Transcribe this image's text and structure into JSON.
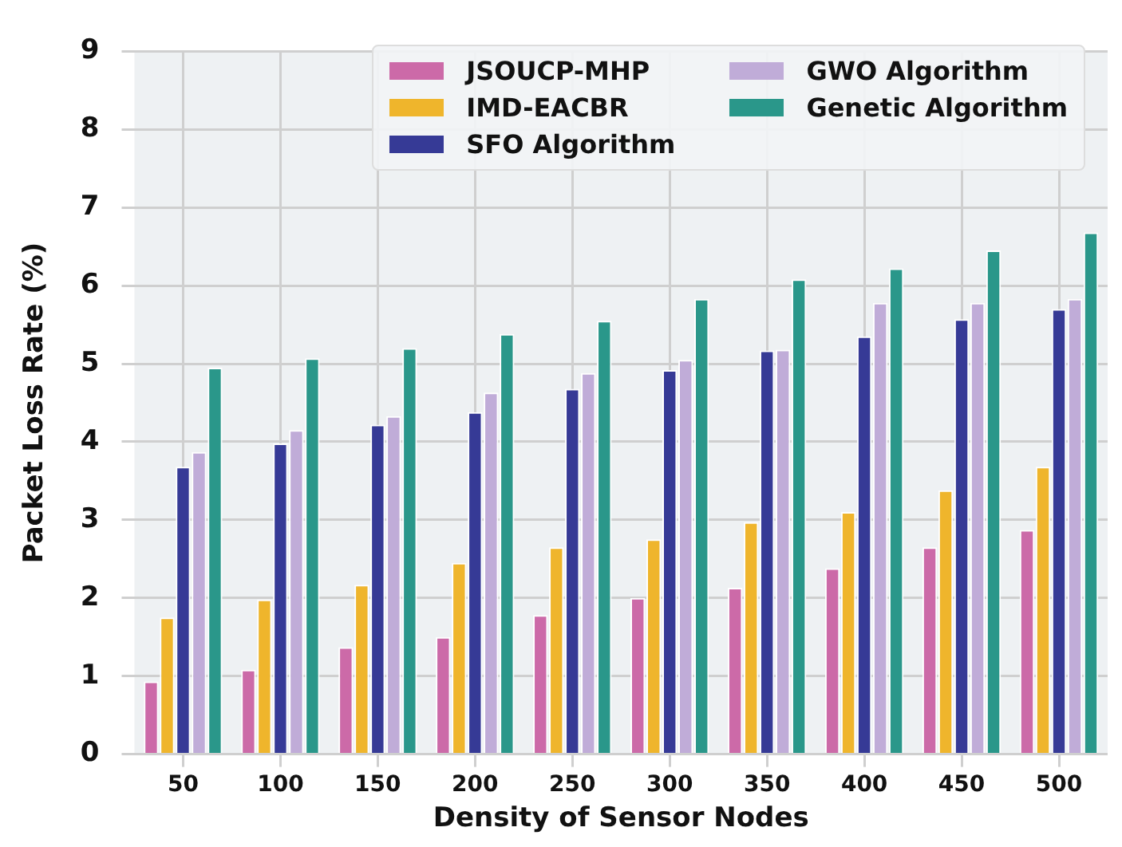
{
  "chart_data": {
    "type": "bar",
    "xlabel": "Density of Sensor Nodes",
    "ylabel": "Packet Loss Rate (%)",
    "categories": [
      "50",
      "100",
      "150",
      "200",
      "250",
      "300",
      "350",
      "400",
      "450",
      "500"
    ],
    "series": [
      {
        "name": "JSOUCP-MHP",
        "color": "#cc6aa8",
        "values": [
          0.93,
          1.08,
          1.37,
          1.5,
          1.78,
          2.0,
          2.13,
          2.38,
          2.65,
          2.87
        ]
      },
      {
        "name": "IMD-EACBR",
        "color": "#efb52c",
        "values": [
          1.75,
          1.98,
          2.17,
          2.45,
          2.65,
          2.75,
          2.97,
          3.1,
          3.38,
          3.68
        ]
      },
      {
        "name": "SFO Algorithm",
        "color": "#363a96",
        "values": [
          3.68,
          3.98,
          4.22,
          4.38,
          4.68,
          4.92,
          5.17,
          5.35,
          5.57,
          5.7
        ]
      },
      {
        "name": "GWO Algorithm",
        "color": "#c0acd8",
        "values": [
          3.87,
          4.15,
          4.33,
          4.63,
          4.88,
          5.05,
          5.18,
          5.78,
          5.78,
          5.83
        ]
      },
      {
        "name": "Genetic Algorithm",
        "color": "#2a978a",
        "values": [
          4.95,
          5.07,
          5.2,
          5.38,
          5.55,
          5.83,
          6.08,
          6.22,
          6.45,
          6.68
        ]
      }
    ],
    "ylim": [
      0,
      9
    ],
    "yticks": [
      0,
      1,
      2,
      3,
      4,
      5,
      6,
      7,
      8,
      9
    ],
    "grid": true,
    "legend": "top right"
  }
}
